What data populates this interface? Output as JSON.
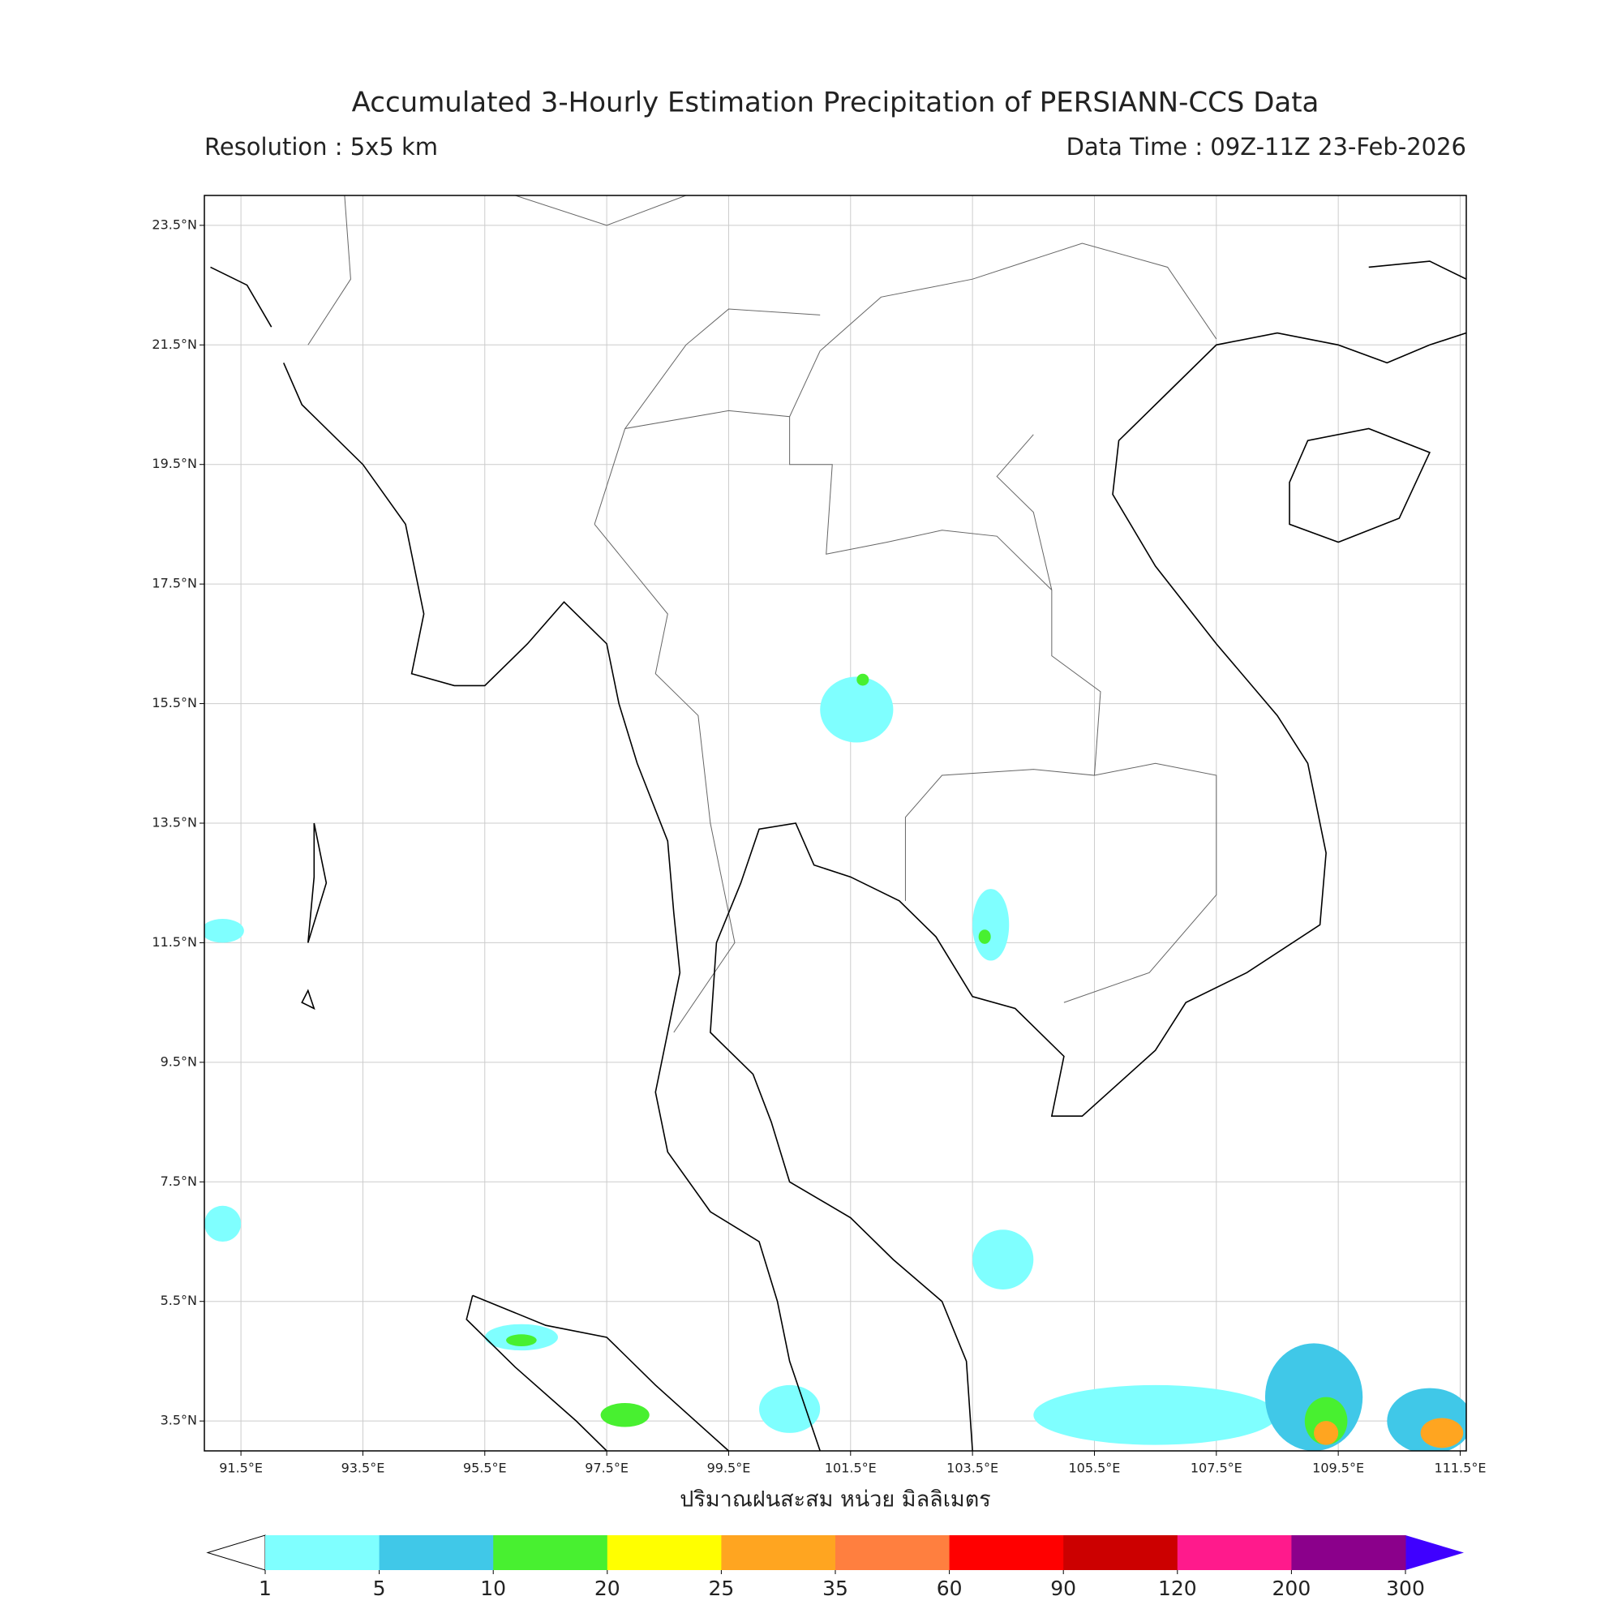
{
  "title": "Accumulated 3-Hourly Estimation Precipitation of PERSIANN-CCS Data",
  "resolution": "Resolution : 5x5 km",
  "data_time": "Data Time : 09Z-11Z 23-Feb-2026",
  "map": {
    "xlim": [
      90.9,
      111.6
    ],
    "ylim": [
      3.0,
      24.0
    ],
    "grid": true,
    "xticks": [
      {
        "value": 91.5,
        "label": "91.5°E"
      },
      {
        "value": 93.5,
        "label": "93.5°E"
      },
      {
        "value": 95.5,
        "label": "95.5°E"
      },
      {
        "value": 97.5,
        "label": "97.5°E"
      },
      {
        "value": 99.5,
        "label": "99.5°E"
      },
      {
        "value": 101.5,
        "label": "101.5°E"
      },
      {
        "value": 103.5,
        "label": "103.5°E"
      },
      {
        "value": 105.5,
        "label": "105.5°E"
      },
      {
        "value": 107.5,
        "label": "107.5°E"
      },
      {
        "value": 109.5,
        "label": "109.5°E"
      },
      {
        "value": 111.5,
        "label": "111.5°E"
      }
    ],
    "yticks": [
      {
        "value": 3.5,
        "label": "3.5°N"
      },
      {
        "value": 5.5,
        "label": "5.5°N"
      },
      {
        "value": 7.5,
        "label": "7.5°N"
      },
      {
        "value": 9.5,
        "label": "9.5°N"
      },
      {
        "value": 11.5,
        "label": "11.5°N"
      },
      {
        "value": 13.5,
        "label": "13.5°N"
      },
      {
        "value": 15.5,
        "label": "15.5°N"
      },
      {
        "value": 17.5,
        "label": "17.5°N"
      },
      {
        "value": 19.5,
        "label": "19.5°N"
      },
      {
        "value": 21.5,
        "label": "21.5°N"
      },
      {
        "value": 23.5,
        "label": "23.5°N"
      }
    ]
  },
  "colorbar": {
    "label": "ปริมาณฝนสะสม หน่วย มิลลิเมตร",
    "levels": [
      1,
      5,
      10,
      20,
      25,
      35,
      60,
      90,
      120,
      200,
      300
    ],
    "colors": [
      "#7fffff",
      "#40c8e8",
      "#48f030",
      "#ffff00",
      "#ffa520",
      "#ff7f3f",
      "#ff0000",
      "#cc0000",
      "#ff1a8c",
      "#8b008b"
    ],
    "under_color": "#ffffff",
    "over_color": "#3f00ff"
  }
}
